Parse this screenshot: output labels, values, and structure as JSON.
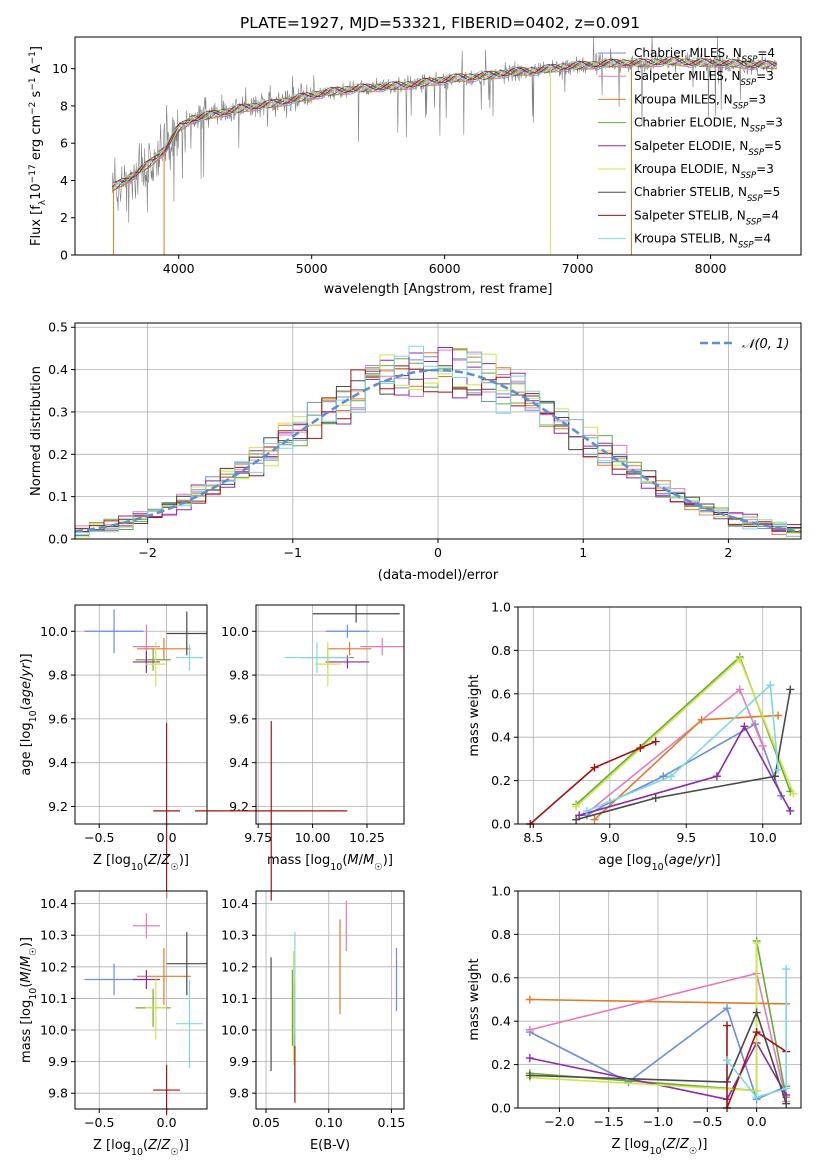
{
  "figure_title": "PLATE=1927, MJD=53321, FIBERID=0402, z=0.091",
  "colors": {
    "Chabrier MILES": "#6a8fdc",
    "Salpeter MILES": "#e57bbd",
    "Kroupa MILES": "#e07b2a",
    "Chabrier ELODIE": "#6aaa3a",
    "Salpeter ELODIE": "#8e2aa8",
    "Kroupa ELODIE": "#cfe64a",
    "Chabrier STELIB": "#4a4a4a",
    "Salpeter STELIB": "#a01515",
    "Kroupa STELIB": "#7fd8e0",
    "data": "#808080",
    "normal": "#5b8fd6"
  },
  "chart_data": [
    {
      "id": "spectrum",
      "type": "line",
      "title": "PLATE=1927, MJD=53321, FIBERID=0402, z=0.091",
      "xlabel": "wavelength [Angstrom, rest frame]",
      "ylabel": "Flux [f",
      "ylabel_sub": "λ",
      "ylabel_rest": "10",
      "ylabel_exp": "−17",
      "ylabel_tail": " erg cm",
      "ylabel_exp2": "−2",
      "ylabel_tail2": " s",
      "ylabel_exp3": "−1",
      "ylabel_tail3": " A",
      "ylabel_exp4": "−1",
      "ylabel_end": "]",
      "xlim": [
        3220,
        8680
      ],
      "ylim": [
        0,
        11.7
      ],
      "xticks": [
        "4000",
        "5000",
        "6000",
        "7000",
        "8000"
      ],
      "yticks": [
        "0",
        "2",
        "4",
        "6",
        "8",
        "10"
      ],
      "legend_position": "upper-right",
      "legend": [
        {
          "name": "Chabrier MILES",
          "nssp": "4"
        },
        {
          "name": "Salpeter MILES",
          "nssp": "3"
        },
        {
          "name": "Kroupa MILES",
          "nssp": "3"
        },
        {
          "name": "Chabrier ELODIE",
          "nssp": "3"
        },
        {
          "name": "Salpeter ELODIE",
          "nssp": "5"
        },
        {
          "name": "Kroupa ELODIE",
          "nssp": "3"
        },
        {
          "name": "Chabrier STELIB",
          "nssp": "5"
        },
        {
          "name": "Salpeter STELIB",
          "nssp": "4"
        },
        {
          "name": "Kroupa STELIB",
          "nssp": "4"
        }
      ],
      "nssp_label": "N",
      "nssp_sub": "SSP",
      "continuum": {
        "x": [
          3500,
          3600,
          3700,
          3800,
          3900,
          4000,
          4100,
          4300,
          4500,
          4700,
          4900,
          5100,
          5300,
          5500,
          5700,
          5900,
          6100,
          6300,
          6500,
          6700,
          6900,
          7100,
          7300,
          7500,
          7700,
          7900,
          8100,
          8300,
          8500
        ],
        "y": [
          3.6,
          4.0,
          4.5,
          5.0,
          5.7,
          6.8,
          7.3,
          7.6,
          7.9,
          8.1,
          8.4,
          8.7,
          8.9,
          9.0,
          9.1,
          9.3,
          9.5,
          9.6,
          9.8,
          9.9,
          10.1,
          10.2,
          10.3,
          10.3,
          10.4,
          10.3,
          10.3,
          10.2,
          10.2
        ]
      }
    },
    {
      "id": "residuals",
      "type": "bar",
      "xlabel": "(data-model)/error",
      "ylabel": "Normed distribution",
      "xlim": [
        -2.5,
        2.5
      ],
      "ylim": [
        0,
        0.51
      ],
      "xticks": [
        "−2",
        "−1",
        "0",
        "1",
        "2"
      ],
      "yticks": [
        "0.0",
        "0.1",
        "0.2",
        "0.3",
        "0.4",
        "0.5"
      ],
      "legend": "𝒩(0, 1)",
      "legend_position": "upper-right",
      "bin_width": 0.1
    },
    {
      "id": "age-vs-Z",
      "type": "scatter",
      "xlabel": "Z [log10(Z/Z☉)]",
      "ylabel": "age [log10(age/yr)]",
      "xlim": [
        -0.68,
        0.3
      ],
      "ylim": [
        9.12,
        10.12
      ],
      "xticks": [
        "−0.5",
        "0.0"
      ],
      "yticks": [
        "9.2",
        "9.4",
        "9.6",
        "9.8",
        "10.0"
      ],
      "points": [
        {
          "model": "Chabrier MILES",
          "x": -0.39,
          "y": 10.0,
          "xerr": 0.22,
          "yerr": 0.2
        },
        {
          "model": "Salpeter MILES",
          "x": -0.15,
          "y": 9.93,
          "xerr": 0.1,
          "yerr": 0.2
        },
        {
          "model": "Kroupa MILES",
          "x": -0.02,
          "y": 9.92,
          "xerr": 0.2,
          "yerr": 0.1
        },
        {
          "model": "Chabrier ELODIE",
          "x": -0.1,
          "y": 9.87,
          "xerr": 0.13,
          "yerr": 0.1
        },
        {
          "model": "Salpeter ELODIE",
          "x": -0.15,
          "y": 9.86,
          "xerr": 0.1,
          "yerr": 0.1
        },
        {
          "model": "Kroupa ELODIE",
          "x": -0.08,
          "y": 9.85,
          "xerr": 0.08,
          "yerr": 0.2
        },
        {
          "model": "Chabrier STELIB",
          "x": 0.15,
          "y": 9.99,
          "xerr": 0.15,
          "yerr": 0.2
        },
        {
          "model": "Salpeter STELIB",
          "x": 0.0,
          "y": 9.18,
          "xerr": 0.1,
          "yerr": 0.8
        },
        {
          "model": "Kroupa STELIB",
          "x": 0.17,
          "y": 9.88,
          "xerr": 0.1,
          "yerr": 0.12
        }
      ]
    },
    {
      "id": "age-vs-mass",
      "type": "scatter",
      "xlabel": "mass [log10(M/M☉)]",
      "ylabel": "",
      "xlim": [
        9.74,
        10.42
      ],
      "ylim": [
        9.12,
        10.12
      ],
      "xticks": [
        "9.75",
        "10.00",
        "10.25"
      ],
      "yticks": [
        "9.2",
        "9.4",
        "9.6",
        "9.8",
        "10.0"
      ],
      "points": [
        {
          "model": "Chabrier MILES",
          "x": 10.16,
          "y": 10.0,
          "xerr": 0.1,
          "yerr": 0.06
        },
        {
          "model": "Salpeter MILES",
          "x": 10.32,
          "y": 9.93,
          "xerr": 0.1,
          "yerr": 0.08
        },
        {
          "model": "Kroupa MILES",
          "x": 10.17,
          "y": 9.92,
          "xerr": 0.1,
          "yerr": 0.06
        },
        {
          "model": "Chabrier ELODIE",
          "x": 10.07,
          "y": 9.88,
          "xerr": 0.12,
          "yerr": 0.1
        },
        {
          "model": "Salpeter ELODIE",
          "x": 10.16,
          "y": 9.86,
          "xerr": 0.1,
          "yerr": 0.06
        },
        {
          "model": "Kroupa ELODIE",
          "x": 10.07,
          "y": 9.85,
          "xerr": 0.06,
          "yerr": 0.2
        },
        {
          "model": "Chabrier STELIB",
          "x": 10.2,
          "y": 10.08,
          "xerr": 0.2,
          "yerr": 0.08
        },
        {
          "model": "Salpeter STELIB",
          "x": 9.81,
          "y": 9.18,
          "xerr": 0.35,
          "yerr": 0.82
        },
        {
          "model": "Kroupa STELIB",
          "x": 10.02,
          "y": 9.88,
          "xerr": 0.15,
          "yerr": 0.14
        }
      ]
    },
    {
      "id": "weight-vs-age",
      "type": "line",
      "xlabel": "age [log10(age/yr)]",
      "ylabel": "mass weight",
      "xlim": [
        8.4,
        10.25
      ],
      "ylim": [
        0,
        1
      ],
      "xticks": [
        "8.5",
        "9.0",
        "9.5",
        "10.0"
      ],
      "yticks": [
        "0.0",
        "0.2",
        "0.4",
        "0.6",
        "0.8",
        "1.0"
      ],
      "series": [
        {
          "model": "Chabrier MILES",
          "x": [
            8.85,
            9.0,
            9.35,
            9.95,
            10.12
          ],
          "y": [
            0.04,
            0.1,
            0.22,
            0.46,
            0.13
          ]
        },
        {
          "model": "Salpeter MILES",
          "x": [
            8.85,
            9.85,
            10.0
          ],
          "y": [
            0.05,
            0.62,
            0.36
          ]
        },
        {
          "model": "Kroupa MILES",
          "x": [
            8.9,
            9.6,
            10.1
          ],
          "y": [
            0.02,
            0.48,
            0.5
          ]
        },
        {
          "model": "Chabrier ELODIE",
          "x": [
            8.78,
            9.85,
            10.18
          ],
          "y": [
            0.09,
            0.77,
            0.15
          ]
        },
        {
          "model": "Salpeter ELODIE",
          "x": [
            8.8,
            9.7,
            9.88,
            10.18
          ],
          "y": [
            0.04,
            0.22,
            0.45,
            0.06
          ]
        },
        {
          "model": "Kroupa ELODIE",
          "x": [
            8.78,
            9.85,
            10.2
          ],
          "y": [
            0.08,
            0.76,
            0.14
          ]
        },
        {
          "model": "Chabrier STELIB",
          "x": [
            8.78,
            9.3,
            10.08,
            10.18
          ],
          "y": [
            0.02,
            0.12,
            0.22,
            0.62
          ]
        },
        {
          "model": "Salpeter STELIB",
          "x": [
            8.48,
            8.9,
            9.2,
            9.3
          ],
          "y": [
            0.0,
            0.26,
            0.35,
            0.38
          ]
        },
        {
          "model": "Kroupa STELIB",
          "x": [
            8.85,
            9.4,
            10.05,
            10.1
          ],
          "y": [
            0.06,
            0.22,
            0.64,
            0.25
          ]
        }
      ]
    },
    {
      "id": "mass-vs-Z",
      "type": "scatter",
      "xlabel": "Z [log10(Z/Z☉)]",
      "ylabel": "mass [log10(M/M☉)]",
      "xlim": [
        -0.68,
        0.3
      ],
      "ylim": [
        9.75,
        10.44
      ],
      "xticks": [
        "−0.5",
        "0.0"
      ],
      "yticks": [
        "9.8",
        "9.9",
        "10.0",
        "10.1",
        "10.2",
        "10.3",
        "10.4"
      ],
      "points": [
        {
          "model": "Chabrier MILES",
          "x": -0.39,
          "y": 10.16,
          "xerr": 0.22,
          "yerr": 0.1
        },
        {
          "model": "Salpeter MILES",
          "x": -0.15,
          "y": 10.33,
          "xerr": 0.1,
          "yerr": 0.08
        },
        {
          "model": "Kroupa MILES",
          "x": -0.02,
          "y": 10.17,
          "xerr": 0.2,
          "yerr": 0.18
        },
        {
          "model": "Chabrier ELODIE",
          "x": -0.1,
          "y": 10.07,
          "xerr": 0.13,
          "yerr": 0.12
        },
        {
          "model": "Salpeter ELODIE",
          "x": -0.15,
          "y": 10.16,
          "xerr": 0.1,
          "yerr": 0.06
        },
        {
          "model": "Kroupa ELODIE",
          "x": -0.08,
          "y": 10.07,
          "xerr": 0.08,
          "yerr": 0.2
        },
        {
          "model": "Chabrier STELIB",
          "x": 0.15,
          "y": 10.21,
          "xerr": 0.15,
          "yerr": 0.2
        },
        {
          "model": "Salpeter STELIB",
          "x": 0.0,
          "y": 9.81,
          "xerr": 0.1,
          "yerr": 0.16
        },
        {
          "model": "Kroupa STELIB",
          "x": 0.17,
          "y": 10.02,
          "xerr": 0.1,
          "yerr": 0.28
        }
      ]
    },
    {
      "id": "mass-vs-ebv",
      "type": "scatter",
      "xlabel": "E(B-V)",
      "ylabel": "",
      "xlim": [
        0.042,
        0.16
      ],
      "ylim": [
        9.75,
        10.44
      ],
      "xticks": [
        "0.05",
        "0.10",
        "0.15"
      ],
      "yticks": [
        "9.8",
        "9.9",
        "10.0",
        "10.1",
        "10.2",
        "10.3",
        "10.4"
      ],
      "points": [
        {
          "model": "Chabrier MILES",
          "x": 0.154,
          "y": 10.16,
          "yerr": 0.1
        },
        {
          "model": "Salpeter MILES",
          "x": 0.114,
          "y": 10.33,
          "yerr": 0.08
        },
        {
          "model": "Kroupa MILES",
          "x": 0.109,
          "y": 10.2,
          "yerr": 0.15
        },
        {
          "model": "Chabrier ELODIE",
          "x": 0.071,
          "y": 10.07,
          "yerr": 0.12
        },
        {
          "model": "Salpeter ELODIE",
          "x": 0.072,
          "y": 10.05,
          "yerr": 0.1
        },
        {
          "model": "Kroupa ELODIE",
          "x": 0.072,
          "y": 10.07,
          "yerr": 0.18
        },
        {
          "model": "Chabrier STELIB",
          "x": 0.054,
          "y": 10.05,
          "yerr": 0.18
        },
        {
          "model": "Salpeter STELIB",
          "x": 0.073,
          "y": 9.88,
          "yerr": 0.11
        },
        {
          "model": "Kroupa STELIB",
          "x": 0.073,
          "y": 10.13,
          "yerr": 0.18
        }
      ]
    },
    {
      "id": "weight-vs-Z",
      "type": "line",
      "xlabel": "Z [log10(Z/Z☉)]",
      "ylabel": "mass weight",
      "xlim": [
        -2.42,
        0.45
      ],
      "ylim": [
        0,
        1
      ],
      "xticks": [
        "−2.0",
        "−1.5",
        "−1.0",
        "−0.5",
        "0.0"
      ],
      "yticks": [
        "0.0",
        "0.2",
        "0.4",
        "0.6",
        "0.8",
        "1.0"
      ],
      "series": [
        {
          "model": "Chabrier MILES",
          "x": [
            -2.3,
            -1.3,
            -0.3,
            0.0,
            0.3
          ],
          "y": [
            0.35,
            0.12,
            0.46,
            0.04,
            0.1
          ]
        },
        {
          "model": "Salpeter MILES",
          "x": [
            -2.3,
            0.0,
            0.3
          ],
          "y": [
            0.36,
            0.62,
            0.03
          ]
        },
        {
          "model": "Kroupa MILES",
          "x": [
            -2.3,
            0.3
          ],
          "y": [
            0.5,
            0.48
          ]
        },
        {
          "model": "Chabrier ELODIE",
          "x": [
            -2.3,
            0.0,
            0.0,
            0.3
          ],
          "y": [
            0.16,
            0.08,
            0.77,
            0.05
          ]
        },
        {
          "model": "Salpeter ELODIE",
          "x": [
            -2.3,
            -0.3,
            0.0,
            0.3
          ],
          "y": [
            0.23,
            0.04,
            0.3,
            0.06
          ]
        },
        {
          "model": "Kroupa ELODIE",
          "x": [
            -2.3,
            0.0,
            0.0
          ],
          "y": [
            0.14,
            0.08,
            0.76
          ]
        },
        {
          "model": "Chabrier STELIB",
          "x": [
            -2.3,
            -0.3,
            0.0,
            0.3
          ],
          "y": [
            0.15,
            0.12,
            0.44,
            0.02
          ]
        },
        {
          "model": "Salpeter STELIB",
          "x": [
            -0.3,
            -0.3,
            0.0,
            0.3
          ],
          "y": [
            0.38,
            0.0,
            0.35,
            0.26
          ]
        },
        {
          "model": "Kroupa STELIB",
          "x": [
            -0.3,
            0.0,
            0.3,
            0.3
          ],
          "y": [
            0.22,
            0.05,
            0.09,
            0.64
          ]
        }
      ]
    }
  ]
}
